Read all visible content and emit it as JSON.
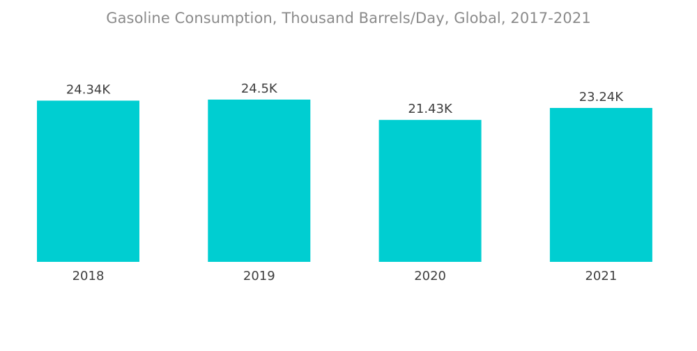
{
  "chart_data": {
    "type": "bar",
    "title": "Gasoline Consumption, Thousand Barrels/Day, Global, 2017-2021",
    "categories": [
      "2018",
      "2019",
      "2020",
      "2021"
    ],
    "values": [
      24.34,
      24.5,
      21.43,
      23.24
    ],
    "value_labels": [
      "24.34K",
      "24.5K",
      "21.43K",
      "23.24K"
    ],
    "xlabel": "",
    "ylabel": "",
    "ylim": [
      0,
      24.5
    ],
    "grid": false,
    "legend": "none",
    "colors": {
      "bar": "#00CED1"
    }
  }
}
